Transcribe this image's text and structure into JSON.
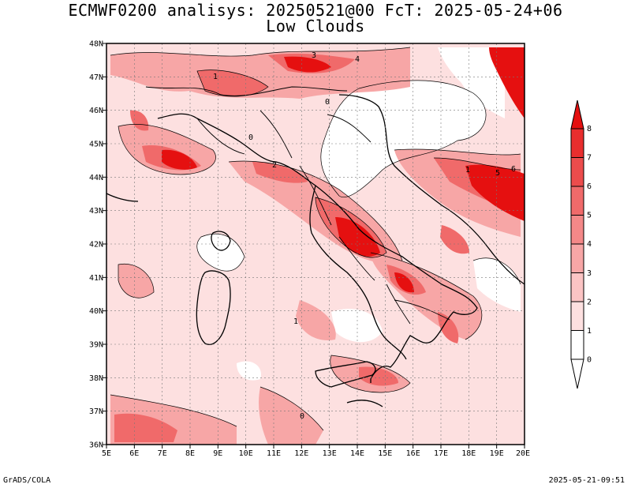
{
  "title": {
    "line1": "ECMWF0200 analisys: 20250521@00 FcT: 2025-05-24+06",
    "line2": "Low Clouds"
  },
  "map": {
    "lat_labels": [
      "48N",
      "47N",
      "46N",
      "45N",
      "44N",
      "43N",
      "42N",
      "41N",
      "40N",
      "39N",
      "38N",
      "37N",
      "36N"
    ],
    "lon_labels": [
      "5E",
      "6E",
      "7E",
      "8E",
      "9E",
      "10E",
      "11E",
      "12E",
      "13E",
      "14E",
      "15E",
      "16E",
      "17E",
      "18E",
      "19E",
      "20E"
    ],
    "lat_range": [
      36,
      48
    ],
    "lon_range": [
      5,
      20
    ],
    "contour_labels": [
      "0",
      "1",
      "2",
      "3",
      "4",
      "5",
      "6"
    ]
  },
  "colorbar": {
    "levels": [
      "0",
      "1",
      "2",
      "3",
      "4",
      "5",
      "6",
      "7",
      "8"
    ],
    "colors": [
      "#ffffff",
      "#fde0e0",
      "#fbc4c4",
      "#f7a6a6",
      "#f48888",
      "#f06a6a",
      "#ec4c4c",
      "#e82e2e",
      "#e51010"
    ]
  },
  "footer": {
    "left": "GrADS/COLA",
    "right": "2025-05-21-09:51"
  }
}
